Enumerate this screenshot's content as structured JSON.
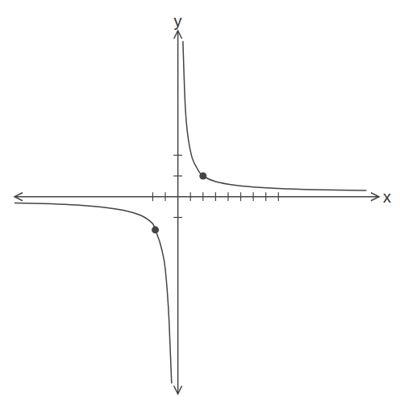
{
  "chart_data": {
    "type": "line",
    "xlabel": "x",
    "ylabel": "y",
    "xlim": [
      -13,
      16
    ],
    "ylim": [
      -9.5,
      8
    ],
    "xticks": [
      -2,
      -1,
      1,
      2,
      3,
      4,
      5,
      6,
      7,
      8
    ],
    "yticks": [
      -1,
      1,
      2
    ],
    "tick_labels": false,
    "grid": false,
    "color": "#444444",
    "series": [
      {
        "color": "#444444",
        "x": [
          0.4,
          0.6,
          1,
          1.5,
          2,
          4,
          8,
          15
        ],
        "values": [
          7.5,
          4.2,
          2.2,
          1.4,
          1,
          0.6,
          0.4,
          0.3
        ]
      },
      {
        "color": "#444444",
        "x": [
          -13,
          -8,
          -4,
          -2,
          -1.8,
          -1.3,
          -1,
          -0.7,
          -0.5
        ],
        "values": [
          -0.3,
          -0.4,
          -0.7,
          -1.3,
          -1.6,
          -2.5,
          -3.5,
          -6,
          -9
        ]
      }
    ],
    "marked_points": {
      "x": [
        2,
        -1.8
      ],
      "values": [
        1,
        -1.6
      ],
      "marker": "circle"
    }
  }
}
